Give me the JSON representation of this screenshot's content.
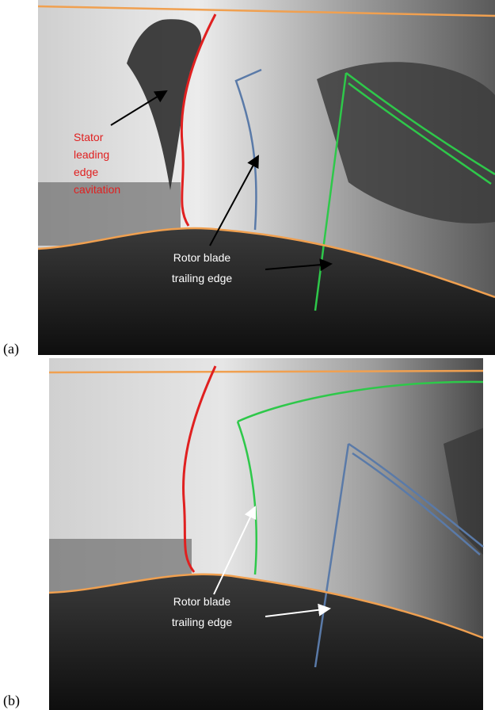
{
  "panels": [
    {
      "label": "(a)",
      "annotations": [
        {
          "lines": [
            "Stator",
            "leading",
            "edge",
            "cavitation"
          ]
        },
        {
          "lines": [
            "Rotor blade",
            "trailing edge"
          ]
        }
      ]
    },
    {
      "label": "(b)",
      "annotations": [
        {
          "lines": [
            "Rotor blade",
            "trailing edge"
          ]
        }
      ]
    }
  ]
}
